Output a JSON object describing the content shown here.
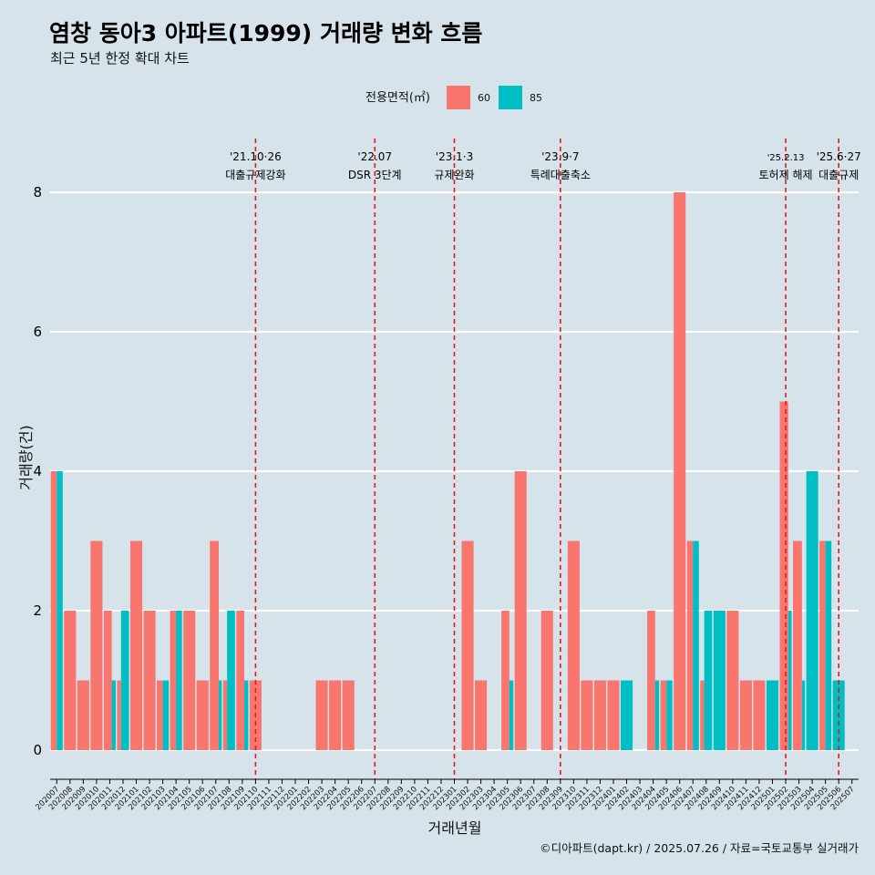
{
  "title": "염창 동아3 아파트(1999) 거래량 변화 흐름",
  "subtitle": "최근 5년 한정 확대 차트",
  "caption": "©디아파트(dapt.kr) / 2025.07.26 / 자료=국토교통부 실거래가",
  "colors": {
    "background": "#d6e3ea",
    "s60": "#f8766d",
    "s85": "#00bfc4",
    "event_line": "#e8171d"
  },
  "chart_data": {
    "type": "bar",
    "xlabel": "거래년월",
    "ylabel": "거래량(건)",
    "ylim": [
      0,
      8
    ],
    "yticks": [
      0,
      2,
      4,
      6,
      8
    ],
    "grid": true,
    "legend": {
      "title": "전용면적(㎡)",
      "position": "top"
    },
    "categories": [
      "202007",
      "202008",
      "202009",
      "202010",
      "202011",
      "202012",
      "202101",
      "202102",
      "202103",
      "202104",
      "202105",
      "202106",
      "202107",
      "202108",
      "202109",
      "202110",
      "202111",
      "202112",
      "202201",
      "202202",
      "202203",
      "202204",
      "202205",
      "202206",
      "202207",
      "202208",
      "202209",
      "202210",
      "202211",
      "202212",
      "202301",
      "202302",
      "202303",
      "202304",
      "202305",
      "202306",
      "202307",
      "202308",
      "202309",
      "202310",
      "202311",
      "202312",
      "202401",
      "202402",
      "202403",
      "202404",
      "202405",
      "202406",
      "202407",
      "202408",
      "202409",
      "202410",
      "202411",
      "202412",
      "202501",
      "202502",
      "202503",
      "202504",
      "202505",
      "202506",
      "202507"
    ],
    "series": [
      {
        "name": "60",
        "values": [
          4,
          2,
          1,
          3,
          2,
          1,
          3,
          2,
          1,
          2,
          2,
          1,
          3,
          1,
          2,
          1,
          0,
          0,
          0,
          0,
          1,
          1,
          1,
          0,
          0,
          0,
          0,
          0,
          0,
          0,
          0,
          3,
          1,
          0,
          2,
          4,
          0,
          2,
          0,
          3,
          1,
          1,
          1,
          0,
          0,
          2,
          1,
          8,
          3,
          1,
          0,
          2,
          1,
          1,
          0,
          5,
          3,
          0,
          3,
          0,
          0
        ]
      },
      {
        "name": "85",
        "values": [
          4,
          0,
          0,
          0,
          1,
          2,
          0,
          0,
          1,
          2,
          0,
          0,
          1,
          2,
          1,
          0,
          0,
          0,
          0,
          0,
          0,
          0,
          0,
          0,
          0,
          0,
          0,
          0,
          0,
          0,
          0,
          0,
          0,
          0,
          1,
          0,
          0,
          0,
          0,
          0,
          0,
          0,
          0,
          1,
          0,
          1,
          1,
          0,
          3,
          2,
          2,
          0,
          0,
          0,
          1,
          2,
          1,
          4,
          3,
          1,
          0
        ]
      }
    ],
    "events": [
      {
        "date": "'21.10·26",
        "label": "대출규제강화",
        "at": "202110",
        "size": "normal"
      },
      {
        "date": "'22.07",
        "label": "DSR 3단계",
        "at": "202207",
        "size": "normal"
      },
      {
        "date": "'23.1·3",
        "label": "규제완화",
        "at": "202301",
        "size": "normal"
      },
      {
        "date": "'23.9·7",
        "label": "특례대출축소",
        "at": "202309",
        "size": "normal"
      },
      {
        "date": "'25.2.13",
        "label": "토허제 해제",
        "at": "202502",
        "size": "small"
      },
      {
        "date": "'25.6·27",
        "label": "대출규제",
        "at": "202506",
        "size": "normal"
      }
    ]
  }
}
